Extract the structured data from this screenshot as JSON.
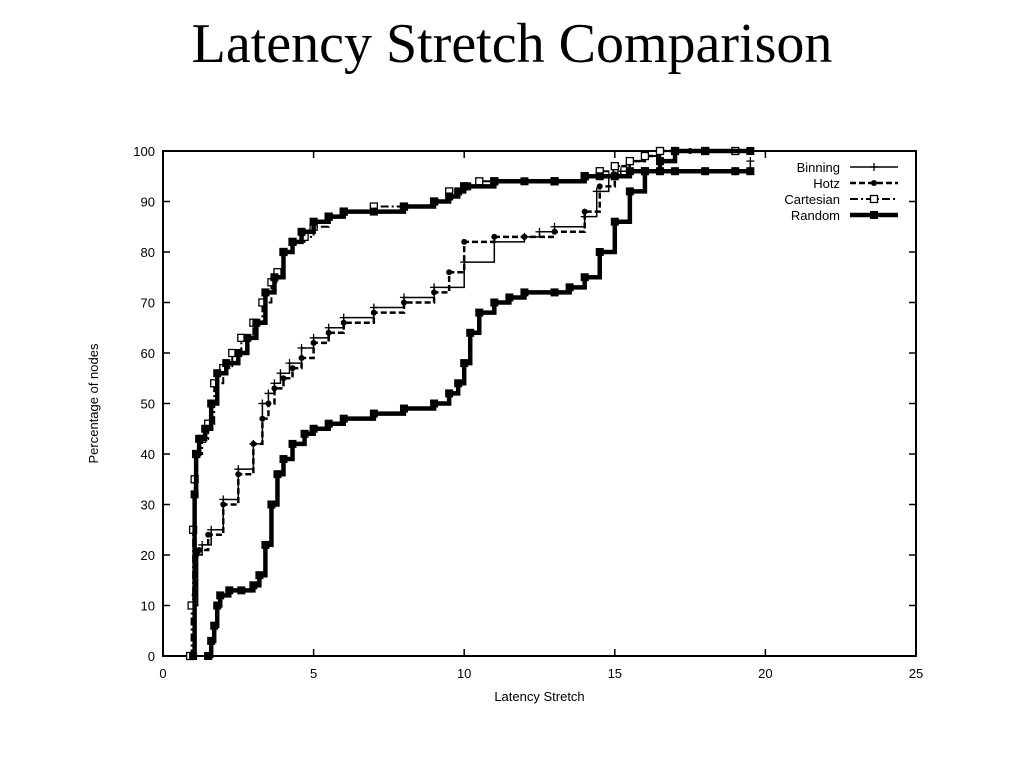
{
  "chart_data": {
    "type": "line",
    "title": "Latency Stretch Comparison",
    "xlabel": "Latency Stretch",
    "ylabel": "Percentage of nodes",
    "xlim": [
      0,
      25
    ],
    "ylim": [
      0,
      100
    ],
    "xticks": [
      0,
      5,
      10,
      15,
      20,
      25
    ],
    "yticks": [
      0,
      10,
      20,
      30,
      40,
      50,
      60,
      70,
      80,
      90,
      100
    ],
    "grid": false,
    "legend_position": "top-right",
    "series": [
      {
        "name": "Binning",
        "style": "solid-thin",
        "marker": "plus",
        "x": [
          1,
          1.05,
          1.15,
          1.3,
          1.6,
          2,
          2.5,
          3,
          3.3,
          3.5,
          3.7,
          3.9,
          4.2,
          4.6,
          5,
          5.5,
          6,
          7,
          8,
          9,
          10,
          11,
          12,
          12.5,
          13,
          14,
          14.4,
          14.8,
          15.2,
          15.5,
          16,
          16.5,
          17,
          18,
          19,
          19.5
        ],
        "y": [
          0,
          10,
          20,
          22,
          25,
          31,
          37,
          42,
          50,
          52,
          54,
          56,
          58,
          61,
          63,
          65,
          67,
          69,
          71,
          73,
          78,
          82,
          83,
          84,
          85,
          87,
          92,
          95,
          96,
          96,
          96,
          96,
          96,
          96,
          96,
          98
        ]
      },
      {
        "name": "Hotz",
        "style": "dashed",
        "marker": "dot",
        "x": [
          1,
          1.05,
          1.1,
          1.2,
          1.5,
          2,
          2.5,
          3,
          3.3,
          3.5,
          3.7,
          4,
          4.3,
          4.6,
          5,
          5.5,
          6,
          7,
          8,
          9,
          9.5,
          10,
          11,
          12,
          13,
          14,
          14.5,
          15,
          15.5,
          16,
          16.5,
          17,
          17.5,
          18
        ],
        "y": [
          0,
          12,
          20,
          21,
          24,
          30,
          36,
          42,
          47,
          50,
          53,
          55,
          57,
          59,
          62,
          64,
          66,
          68,
          70,
          72,
          76,
          82,
          83,
          83,
          84,
          88,
          93,
          97,
          98,
          99,
          100,
          100,
          100,
          100
        ]
      },
      {
        "name": "Cartesian",
        "style": "dash-dot",
        "marker": "square",
        "x": [
          0.9,
          0.95,
          1.0,
          1.05,
          1.1,
          1.3,
          1.5,
          1.7,
          2,
          2.3,
          2.6,
          3,
          3.3,
          3.6,
          3.8,
          4,
          4.3,
          4.7,
          5,
          5.5,
          6,
          7,
          8,
          9,
          9.5,
          10,
          10.5,
          11,
          13,
          14,
          14.5,
          15,
          15.5,
          16,
          16.5,
          17,
          18,
          19
        ],
        "y": [
          0,
          10,
          25,
          35,
          40,
          43,
          46,
          54,
          57,
          60,
          63,
          66,
          70,
          74,
          76,
          80,
          82,
          83,
          85,
          87,
          88,
          89,
          89,
          90,
          92,
          93,
          94,
          94,
          94,
          95,
          96,
          97,
          98,
          99,
          100,
          100,
          100,
          100
        ]
      },
      {
        "name": "Random",
        "style": "solid-thick",
        "marker": "filled-square",
        "x": [
          1.0,
          1.05,
          1.1,
          1.2,
          1.4,
          1.6,
          1.8,
          2.1,
          2.5,
          2.8,
          3.1,
          3.4,
          3.7,
          4,
          4.3,
          4.6,
          5,
          5.5,
          6,
          7,
          8,
          9,
          9.5,
          9.8,
          10,
          10.1,
          11,
          12,
          13,
          14,
          14.5,
          15,
          15.5,
          16,
          16.5,
          17,
          18,
          19,
          19.5
        ],
        "y": [
          0,
          32,
          40,
          43,
          45,
          50,
          56,
          58,
          60,
          63,
          66,
          72,
          75,
          80,
          82,
          84,
          86,
          87,
          88,
          88,
          89,
          90,
          91,
          92,
          93,
          93,
          94,
          94,
          94,
          95,
          95,
          95,
          96,
          96,
          96,
          96,
          96,
          96,
          96
        ]
      },
      {
        "name": "",
        "style": "solid-thick",
        "marker": "filled-square",
        "x": [
          1.5,
          1.6,
          1.7,
          1.8,
          1.9,
          2.2,
          2.6,
          3.0,
          3.2,
          3.4,
          3.6,
          3.8,
          4,
          4.3,
          4.7,
          5,
          5.5,
          6,
          7,
          8,
          9,
          9.5,
          9.8,
          10,
          10.2,
          10.5,
          11,
          11.5,
          12,
          13,
          13.5,
          14,
          14.5,
          15,
          15.5,
          16,
          16.5,
          17,
          18,
          19.5
        ],
        "y": [
          0,
          3,
          6,
          10,
          12,
          13,
          13,
          14,
          16,
          22,
          30,
          36,
          39,
          42,
          44,
          45,
          46,
          47,
          48,
          49,
          50,
          52,
          54,
          58,
          64,
          68,
          70,
          71,
          72,
          72,
          73,
          75,
          80,
          86,
          92,
          96,
          98,
          100,
          100,
          100
        ]
      }
    ],
    "legend": [
      "Binning",
      "Hotz",
      "Cartesian",
      "Random"
    ]
  }
}
